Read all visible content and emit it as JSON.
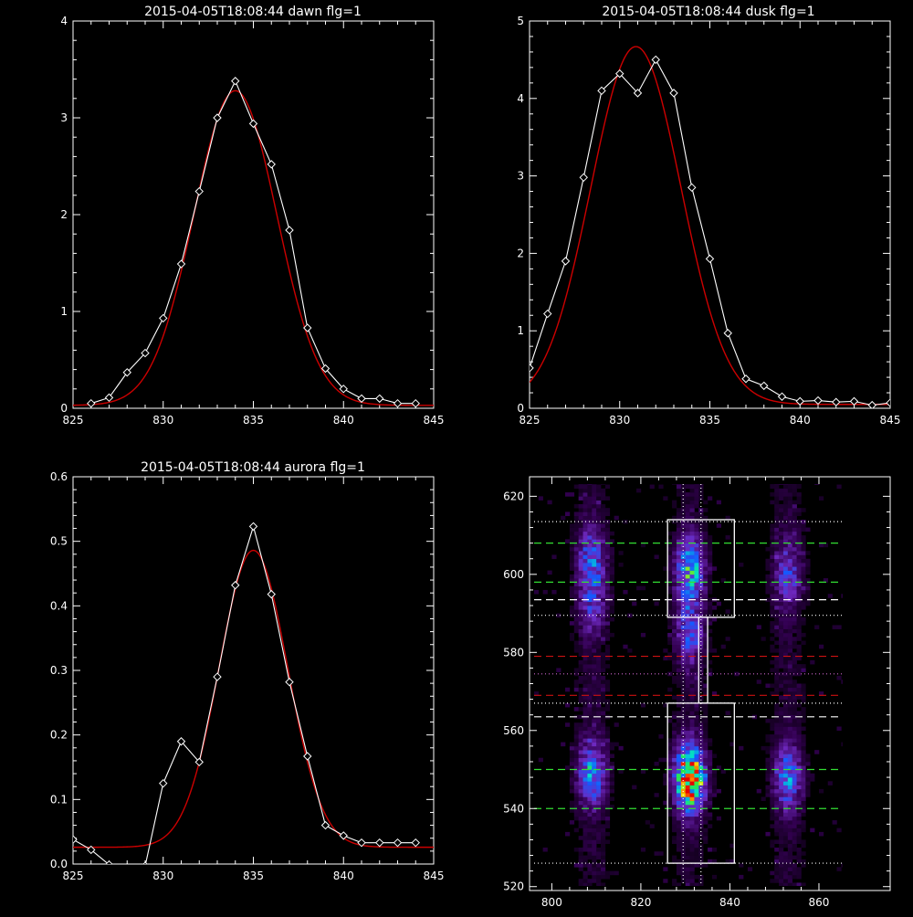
{
  "chart_data": [
    {
      "type": "line",
      "title": "2015-04-05T18:08:44 dawn flg=1",
      "xlim": [
        825,
        845
      ],
      "ylim": [
        0,
        4
      ],
      "xticks": [
        "825",
        "830",
        "835",
        "840",
        "845"
      ],
      "yticks": [
        "0",
        "1",
        "2",
        "3",
        "4"
      ],
      "series": [
        {
          "kind": "data",
          "color": "#ffffff",
          "marker": "diamond",
          "x": [
            826,
            827,
            828,
            829,
            830,
            831,
            832,
            833,
            834,
            835,
            836,
            837,
            838,
            839,
            840,
            841,
            842,
            843,
            844
          ],
          "y": [
            0.05,
            0.11,
            0.37,
            0.57,
            0.93,
            1.49,
            2.24,
            3.0,
            3.38,
            2.94,
            2.52,
            1.84,
            0.83,
            0.41,
            0.2,
            0.1,
            0.1,
            0.05,
            0.05
          ]
        },
        {
          "kind": "fit",
          "color": "#cc0000",
          "gaussian": {
            "amp": 3.25,
            "center": 834.0,
            "sigma": 2.3,
            "base": 0.03
          }
        }
      ]
    },
    {
      "type": "line",
      "title": "2015-04-05T18:08:44 dusk flg=1",
      "xlim": [
        825,
        845
      ],
      "ylim": [
        0,
        5
      ],
      "xticks": [
        "825",
        "830",
        "835",
        "840",
        "845"
      ],
      "yticks": [
        "0",
        "1",
        "2",
        "3",
        "4",
        "5"
      ],
      "series": [
        {
          "kind": "data",
          "color": "#ffffff",
          "marker": "diamond",
          "x": [
            825,
            826,
            827,
            828,
            829,
            830,
            831,
            832,
            833,
            834,
            835,
            836,
            837,
            838,
            839,
            840,
            841,
            842,
            843,
            844,
            845
          ],
          "y": [
            0.52,
            1.22,
            1.9,
            2.98,
            4.1,
            4.32,
            4.07,
            4.5,
            4.07,
            2.85,
            1.93,
            0.97,
            0.38,
            0.29,
            0.15,
            0.09,
            0.1,
            0.08,
            0.09,
            0.04,
            0.07
          ]
        },
        {
          "kind": "fit",
          "color": "#cc0000",
          "gaussian": {
            "amp": 4.62,
            "center": 830.9,
            "sigma": 2.5,
            "base": 0.05
          }
        }
      ]
    },
    {
      "type": "line",
      "title": "2015-04-05T18:08:44 aurora flg=1",
      "xlim": [
        825,
        845
      ],
      "ylim": [
        0,
        0.6
      ],
      "xticks": [
        "825",
        "830",
        "835",
        "840",
        "845"
      ],
      "yticks": [
        "0.0",
        "0.1",
        "0.2",
        "0.3",
        "0.4",
        "0.5",
        "0.6"
      ],
      "series": [
        {
          "kind": "data",
          "color": "#ffffff",
          "marker": "diamond",
          "x": [
            825,
            826,
            827,
            828,
            829,
            830,
            831,
            832,
            833,
            834,
            835,
            836,
            837,
            838,
            839,
            840,
            841,
            842,
            843,
            844
          ],
          "y": [
            0.038,
            0.022,
            -0.001,
            -0.005,
            -0.003,
            0.125,
            0.19,
            0.158,
            0.29,
            0.432,
            0.523,
            0.418,
            0.282,
            0.167,
            0.06,
            0.044,
            0.033,
            0.033,
            0.033,
            0.033
          ]
        },
        {
          "kind": "fit",
          "color": "#cc0000",
          "gaussian": {
            "amp": 0.46,
            "center": 835.0,
            "sigma": 1.9,
            "base": 0.026
          }
        }
      ]
    },
    {
      "type": "heatmap",
      "title": "",
      "xlim": [
        795,
        876
      ],
      "ylim": [
        519,
        625
      ],
      "xticks": [
        "800",
        "820",
        "840",
        "860"
      ],
      "yticks": [
        "520",
        "540",
        "560",
        "580",
        "600",
        "620"
      ],
      "columns_x": [
        809,
        831,
        853
      ],
      "blobs": [
        {
          "x": 809,
          "y": 604,
          "intensity": 0.35
        },
        {
          "x": 809,
          "y": 592,
          "intensity": 0.22
        },
        {
          "x": 809,
          "y": 549,
          "intensity": 0.42
        },
        {
          "x": 831,
          "y": 601,
          "intensity": 0.5
        },
        {
          "x": 831,
          "y": 585,
          "intensity": 0.3
        },
        {
          "x": 831,
          "y": 548,
          "intensity": 0.98
        },
        {
          "x": 853,
          "y": 600,
          "intensity": 0.28
        },
        {
          "x": 853,
          "y": 548,
          "intensity": 0.38
        }
      ],
      "boxes": [
        {
          "x0": 826,
          "x1": 841,
          "y0": 589,
          "y1": 614,
          "color": "#ffffff"
        },
        {
          "x0": 826,
          "x1": 841,
          "y0": 526,
          "y1": 567,
          "color": "#ffffff"
        },
        {
          "x0": 833,
          "x1": 835,
          "y0": 567,
          "y1": 589,
          "color": "#ffffff"
        }
      ],
      "hlines": [
        {
          "y": 613.5,
          "color": "#ffffff",
          "style": "dotted"
        },
        {
          "y": 608,
          "color": "#33dd33",
          "style": "dashed"
        },
        {
          "y": 598,
          "color": "#33dd33",
          "style": "dashed"
        },
        {
          "y": 593.5,
          "color": "#ffffff",
          "style": "dashed"
        },
        {
          "y": 589.5,
          "color": "#ffffff",
          "style": "dotted"
        },
        {
          "y": 579,
          "color": "#cc1111",
          "style": "dashed"
        },
        {
          "y": 574.5,
          "color": "#cc66cc",
          "style": "dotted"
        },
        {
          "y": 569,
          "color": "#cc1111",
          "style": "dashed"
        },
        {
          "y": 567,
          "color": "#ffffff",
          "style": "dotted"
        },
        {
          "y": 563.5,
          "color": "#ffffff",
          "style": "dashed"
        },
        {
          "y": 550,
          "color": "#33dd33",
          "style": "dashed"
        },
        {
          "y": 540,
          "color": "#33dd33",
          "style": "dashed"
        },
        {
          "y": 526,
          "color": "#ffffff",
          "style": "dotted"
        }
      ],
      "vlines": [
        {
          "x": 829.5,
          "color": "#ffffff",
          "style": "dotted"
        },
        {
          "x": 833.5,
          "color": "#ffffff",
          "style": "dotted"
        }
      ]
    }
  ]
}
